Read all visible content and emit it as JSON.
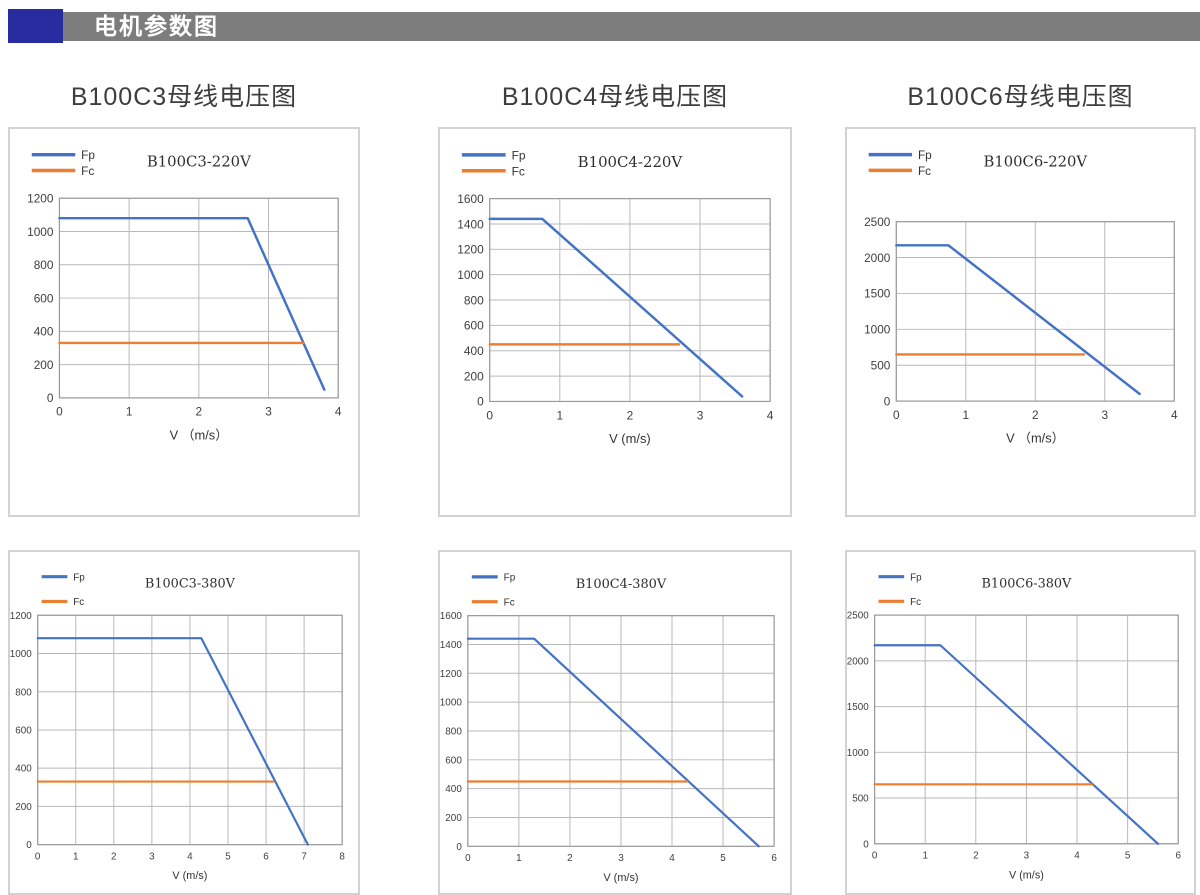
{
  "header": {
    "title": "电机参数图"
  },
  "columns": [
    {
      "title": "B100C3母线电压图"
    },
    {
      "title": "B100C4母线电压图"
    },
    {
      "title": "B100C6母线电压图"
    }
  ],
  "colors": {
    "header_accent": "#272c9e",
    "header_bar": "#7d7d7d",
    "fp_line": "#4472c4",
    "fc_line": "#ed7d31",
    "gridline": "#b8b8b8",
    "plot_border": "#9a9a9a"
  },
  "chart_data": [
    {
      "type": "line",
      "title": "B100C3-220V",
      "xlabel": "V （m/s）",
      "ylabel": "",
      "xlim": [
        0,
        4
      ],
      "xtick_step": 1,
      "ylim": [
        0,
        1200
      ],
      "ytick_step": 200,
      "grid": true,
      "legend_position": "top-left",
      "series": [
        {
          "name": "Fp",
          "color": "#4472c4",
          "points": [
            [
              0,
              1080
            ],
            [
              2.7,
              1080
            ],
            [
              3.8,
              50
            ]
          ]
        },
        {
          "name": "Fc",
          "color": "#ed7d31",
          "points": [
            [
              0,
              330
            ],
            [
              3.5,
              330
            ]
          ]
        }
      ]
    },
    {
      "type": "line",
      "title": "B100C4-220V",
      "xlabel": "V (m/s)",
      "ylabel": "",
      "xlim": [
        0,
        4
      ],
      "xtick_step": 1,
      "ylim": [
        0,
        1600
      ],
      "ytick_step": 200,
      "grid": true,
      "legend_position": "top-left",
      "series": [
        {
          "name": "Fp",
          "color": "#4472c4",
          "points": [
            [
              0,
              1440
            ],
            [
              0.75,
              1440
            ],
            [
              3.6,
              40
            ]
          ]
        },
        {
          "name": "Fc",
          "color": "#ed7d31",
          "points": [
            [
              0,
              450
            ],
            [
              2.7,
              450
            ]
          ]
        }
      ]
    },
    {
      "type": "line",
      "title": "B100C6-220V",
      "xlabel": "V （m/s）",
      "ylabel": "",
      "xlim": [
        0,
        4
      ],
      "xtick_step": 1,
      "ylim": [
        0,
        2500
      ],
      "ytick_step": 500,
      "grid": true,
      "legend_position": "top-left",
      "series": [
        {
          "name": "Fp",
          "color": "#4472c4",
          "points": [
            [
              0,
              2170
            ],
            [
              0.75,
              2170
            ],
            [
              3.5,
              100
            ]
          ]
        },
        {
          "name": "Fc",
          "color": "#ed7d31",
          "points": [
            [
              0,
              650
            ],
            [
              2.7,
              650
            ]
          ]
        }
      ]
    },
    {
      "type": "line",
      "title": "B100C3-380V",
      "xlabel": "V (m/s)",
      "ylabel": "",
      "xlim": [
        0,
        8
      ],
      "xtick_step": 1,
      "ylim": [
        0,
        1200
      ],
      "ytick_step": 200,
      "grid": true,
      "legend_position": "top-left",
      "series": [
        {
          "name": "Fp",
          "color": "#4472c4",
          "points": [
            [
              0,
              1080
            ],
            [
              4.3,
              1080
            ],
            [
              7.1,
              0
            ]
          ]
        },
        {
          "name": "Fc",
          "color": "#ed7d31",
          "points": [
            [
              0,
              330
            ],
            [
              6.2,
              330
            ]
          ]
        }
      ]
    },
    {
      "type": "line",
      "title": "B100C4-380V",
      "xlabel": "V (m/s)",
      "ylabel": "",
      "xlim": [
        0,
        6
      ],
      "xtick_step": 1,
      "ylim": [
        0,
        1600
      ],
      "ytick_step": 200,
      "grid": true,
      "legend_position": "top-left",
      "series": [
        {
          "name": "Fp",
          "color": "#4472c4",
          "points": [
            [
              0,
              1440
            ],
            [
              1.3,
              1440
            ],
            [
              5.7,
              0
            ]
          ]
        },
        {
          "name": "Fc",
          "color": "#ed7d31",
          "points": [
            [
              0,
              450
            ],
            [
              4.3,
              450
            ]
          ]
        }
      ]
    },
    {
      "type": "line",
      "title": "B100C6-380V",
      "xlabel": "V (m/s)",
      "ylabel": "",
      "xlim": [
        0,
        6
      ],
      "xtick_step": 1,
      "ylim": [
        0,
        2500
      ],
      "ytick_step": 500,
      "grid": true,
      "legend_position": "top-left",
      "series": [
        {
          "name": "Fp",
          "color": "#4472c4",
          "points": [
            [
              0,
              2170
            ],
            [
              1.3,
              2170
            ],
            [
              5.6,
              0
            ]
          ]
        },
        {
          "name": "Fc",
          "color": "#ed7d31",
          "points": [
            [
              0,
              650
            ],
            [
              4.3,
              650
            ]
          ]
        }
      ]
    }
  ]
}
